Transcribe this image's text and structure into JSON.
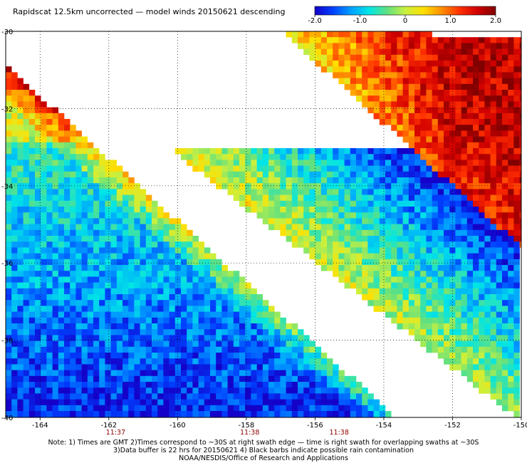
{
  "title": "Rapidscat 12.5km uncorrected — model winds 20150621 descending",
  "colorbar": {
    "ticks": [
      "-2.0",
      "-1.0",
      "0",
      "1.0",
      "2.0"
    ],
    "values": [
      -2,
      -1,
      0,
      1,
      2
    ],
    "range": [
      -2,
      2
    ],
    "colors": [
      "#1400c8",
      "#0040ff",
      "#00a0ff",
      "#00e6e6",
      "#60e080",
      "#c8f040",
      "#ffe000",
      "#ff9000",
      "#ff3000",
      "#d00000",
      "#800000"
    ]
  },
  "map": {
    "lon_ticks": [
      "-164",
      "-162",
      "-160",
      "-158",
      "-156",
      "-154",
      "-152",
      "-150"
    ],
    "lon_values": [
      -164,
      -162,
      -160,
      -158,
      -156,
      -154,
      -152,
      -150
    ],
    "lat_ticks": [
      "-30",
      "-32",
      "-34",
      "-36",
      "-38",
      "-40"
    ],
    "lat_values": [
      -30,
      -32,
      -34,
      -36,
      -38,
      -40
    ],
    "lon_range": [
      -165,
      -150
    ],
    "lat_range": [
      -40,
      -30
    ],
    "grid": "dotted"
  },
  "times": [
    {
      "label": "11:37",
      "lon": -161.8
    },
    {
      "label": "11:38",
      "lon": -157.9
    },
    {
      "label": "11:38",
      "lon": -155.3
    }
  ],
  "notes": {
    "line1": "Note: 1) Times are GMT 2)Times correspond to ~30S at right swath edge — time is right swath for overlapping swaths at ~30S",
    "line2": "3)Data buffer is 22 hrs for 20150621 4) Black barbs indicate possible rain contamination",
    "line3": "NOAA/NESDIS/Office of Research and Applications"
  }
}
